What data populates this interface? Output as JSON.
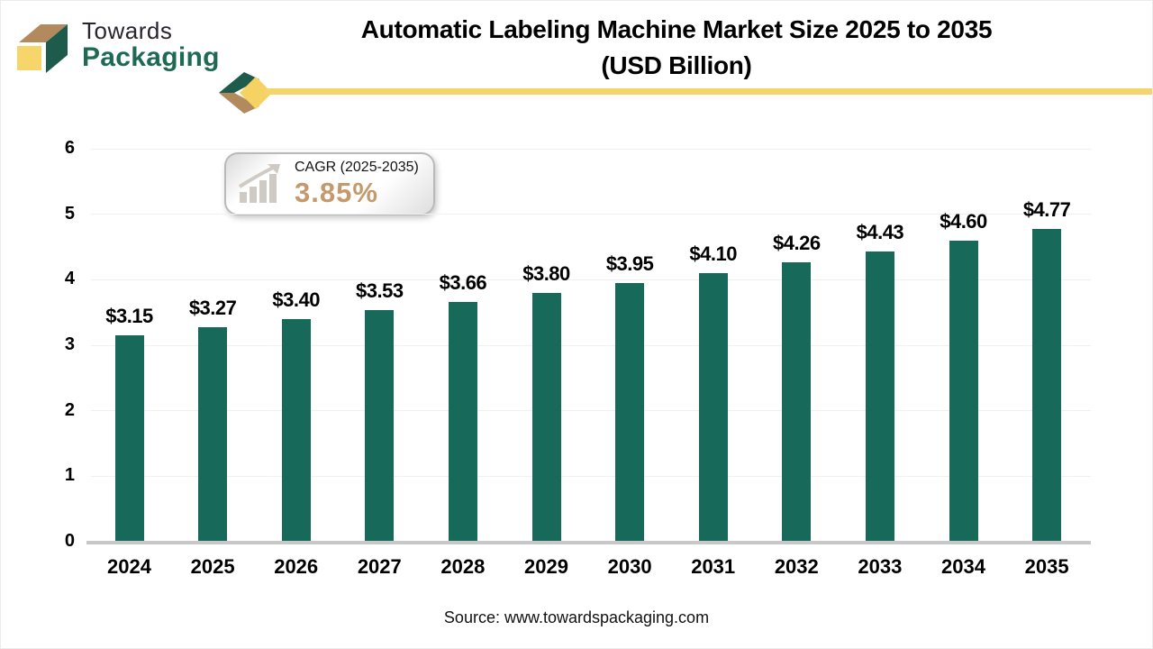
{
  "brand": {
    "name_line1": "Towards",
    "name_line2": "Packaging"
  },
  "header": {
    "title_line1": "Automatic Labeling Machine Market Size 2025 to 2035",
    "title_line2": "(USD Billion)"
  },
  "cagr_badge": {
    "label": "CAGR (2025-2035)",
    "value": "3.85%",
    "icon": "growth-chart-icon"
  },
  "footer": {
    "source": "Source: www.towardspackaging.com"
  },
  "chart_data": {
    "type": "bar",
    "title": "Automatic Labeling Machine Market Size 2025 to 2035 (USD Billion)",
    "unit": "USD Billion",
    "categories": [
      "2024",
      "2025",
      "2026",
      "2027",
      "2028",
      "2029",
      "2030",
      "2031",
      "2032",
      "2033",
      "2034",
      "2035"
    ],
    "values": [
      3.15,
      3.27,
      3.4,
      3.53,
      3.66,
      3.8,
      3.95,
      4.1,
      4.26,
      4.43,
      4.6,
      4.77
    ],
    "value_labels": [
      "$3.15",
      "$3.27",
      "$3.40",
      "$3.53",
      "$3.66",
      "$3.80",
      "$3.95",
      "$4.10",
      "$4.26",
      "$4.43",
      "$4.60",
      "$4.77"
    ],
    "ylim": [
      0,
      6
    ],
    "yticks": [
      0,
      1,
      2,
      3,
      4,
      5,
      6
    ],
    "grid": true,
    "legend": false,
    "bar_color": "#17695A"
  },
  "colors": {
    "bar": "#17695A",
    "accent_yellow": "#F3D56B",
    "diamond_yellow": "#F5D262",
    "logo_green": "#1E6A55",
    "logo_dark_green": "#1D5C4D",
    "logo_tan": "#B3895E",
    "logo_yellow": "#F6D56A",
    "cagr_value_color": "#C49A6C",
    "gridline": "#F0F0F0",
    "axis_line": "#C8C8C8",
    "text": "#000000"
  }
}
